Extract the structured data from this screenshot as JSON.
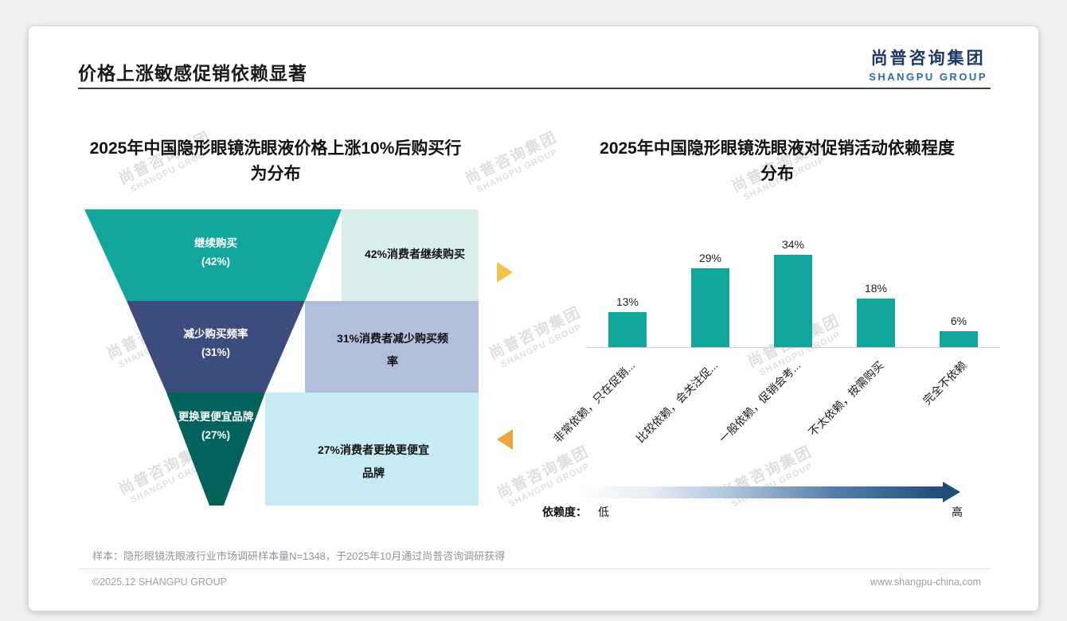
{
  "slide": {
    "title": "价格上涨敏感促销依赖显著",
    "logo_cn": "尚普咨询集团",
    "logo_en": "SHANGPU GROUP",
    "watermark_cn": "尚普咨询集团",
    "watermark_en": "SHANGPU GROUP",
    "sample_note": "样本：隐形眼镜洗眼液行业市场调研样本量N=1348，于2025年10月通过尚普咨询调研获得",
    "copyright": "©2025.12 SHANGPU GROUP",
    "website": "www.shangpu-china.com",
    "colors": {
      "teal": "#10a69b",
      "navy": "#3c4d7d",
      "dark_teal": "#03635c",
      "logo_navy": "#1b3a66",
      "logo_blue": "#2d6da3",
      "arrow_yellow": "#f2c14e",
      "arrow_orange": "#eda63a",
      "gradient_dark": "#1f4e79"
    }
  },
  "left_chart": {
    "title": "2025年中国隐形眼镜洗眼液价格上涨10%后购买行为分布",
    "funnel": [
      {
        "label": "继续购买",
        "pct": "(42%)",
        "note": "42%消费者继续购买",
        "color": "#10a69b",
        "note_bg": "#d9efec"
      },
      {
        "label": "减少购买频率",
        "pct": "(31%)",
        "note": "31%消费者减少购买频率",
        "color": "#3c4d7d",
        "note_bg": "#b3bedd"
      },
      {
        "label": "更换更便宜品牌",
        "pct": "(27%)",
        "note": "27%消费者更换更便宜品牌",
        "color": "#03635c",
        "note_bg": "#c7ebf2"
      }
    ]
  },
  "right_chart": {
    "title": "2025年中国隐形眼镜洗眼液对促销活动依赖程度分布",
    "bar_color": "#10a69b",
    "dependence_label": "依赖度：",
    "low_label": "低",
    "high_label": "高"
  },
  "chart_data": [
    {
      "type": "bar",
      "subtype": "funnel",
      "title": "2025年中国隐形眼镜洗眼液价格上涨10%后购买行为分布",
      "categories": [
        "继续购买",
        "减少购买频率",
        "更换更便宜品牌"
      ],
      "values": [
        42,
        31,
        27
      ],
      "unit": "%",
      "annotations": [
        "42%消费者继续购买",
        "31%消费者减少购买频率",
        "27%消费者更换更便宜品牌"
      ]
    },
    {
      "type": "bar",
      "title": "2025年中国隐形眼镜洗眼液对促销活动依赖程度分布",
      "categories": [
        "非常依赖，只在促销...",
        "比较依赖，会关注促...",
        "一般依赖，促销会考...",
        "不太依赖，按需购买",
        "完全不依赖"
      ],
      "values": [
        13,
        29,
        34,
        18,
        6
      ],
      "value_labels": [
        "13%",
        "29%",
        "34%",
        "18%",
        "6%"
      ],
      "unit": "%",
      "ylim": [
        0,
        40
      ],
      "grid": false,
      "legend": false,
      "x_axis_note": {
        "label": "依赖度：",
        "low": "低",
        "high": "高"
      }
    }
  ]
}
